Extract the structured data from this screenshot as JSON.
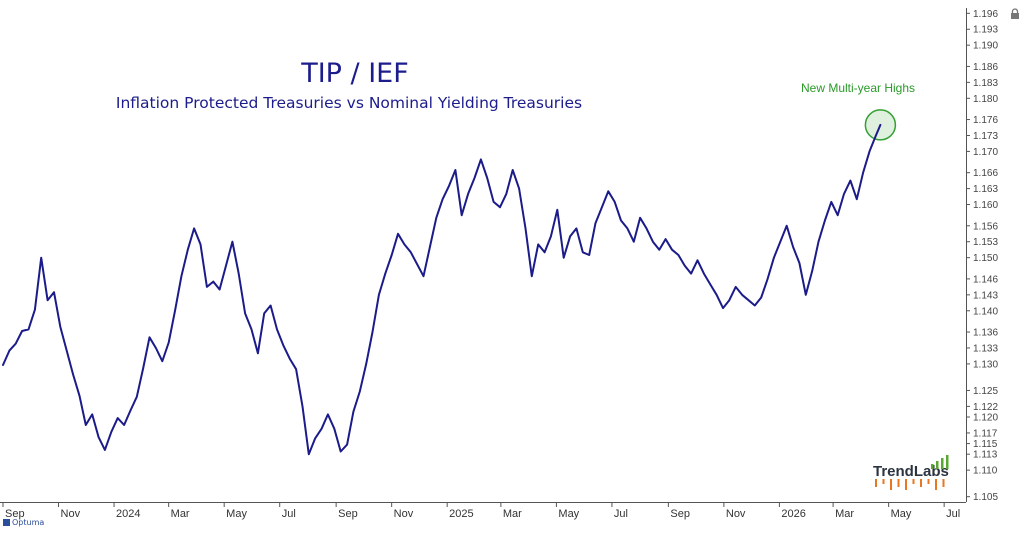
{
  "brand": "Optuma",
  "logo_text": "TrendLabs",
  "colors": {
    "line": "#1b1b8a",
    "title": "#1c1c8c",
    "annotation": "#2a9a2a",
    "highlight_fill": "#d7ecd6",
    "highlight_stroke": "#33a033",
    "axis": "#555555",
    "logo_dots": "#e87722",
    "logo_bars": "#5aa832"
  },
  "chart_data": {
    "type": "line",
    "title": "TIP / IEF",
    "subtitle": "Inflation Protected Treasuries vs Nominal Yielding Treasuries",
    "annotation": "New Multi-year Highs",
    "xlabel": "",
    "ylabel": "",
    "ylim": [
      1.104,
      1.197
    ],
    "grid": false,
    "y_ticks": [
      "1.196",
      "1.193",
      "1.190",
      "1.186",
      "1.183",
      "1.180",
      "1.176",
      "1.173",
      "1.170",
      "1.166",
      "1.163",
      "1.160",
      "1.156",
      "1.153",
      "1.150",
      "1.146",
      "1.143",
      "1.140",
      "1.136",
      "1.133",
      "1.130",
      "1.125",
      "1.122",
      "1.120",
      "1.117",
      "1.115",
      "1.113",
      "1.110",
      "1.105"
    ],
    "x_ticks": [
      "Sep",
      "Nov",
      "2024",
      "Mar",
      "May",
      "Jul",
      "Sep",
      "Nov",
      "2025",
      "Mar",
      "May",
      "Jul",
      "Sep",
      "Nov",
      "2026",
      "Mar",
      "May",
      "Jul"
    ],
    "x_tick_dates": [
      "2023-09-01",
      "2023-11-01",
      "2024-01-01",
      "2024-03-01",
      "2024-05-01",
      "2024-07-01",
      "2024-09-01",
      "2024-11-01",
      "2025-01-01",
      "2025-03-01",
      "2025-05-01",
      "2025-07-01",
      "2025-09-01",
      "2025-11-01",
      "2026-01-01",
      "2026-03-01",
      "2026-05-01",
      "2026-07-01"
    ],
    "xlim": [
      "2023-09-01",
      "2026-07-25"
    ],
    "series": [
      {
        "values": [
          [
            "2023-09-01",
            1.1298
          ],
          [
            "2023-09-08",
            1.1325
          ],
          [
            "2023-09-15",
            1.1338
          ],
          [
            "2023-09-22",
            1.1362
          ],
          [
            "2023-09-29",
            1.1365
          ],
          [
            "2023-10-06",
            1.1402
          ],
          [
            "2023-10-13",
            1.15
          ],
          [
            "2023-10-20",
            1.142
          ],
          [
            "2023-10-27",
            1.1435
          ],
          [
            "2023-11-03",
            1.137
          ],
          [
            "2023-11-10",
            1.1325
          ],
          [
            "2023-11-17",
            1.128
          ],
          [
            "2023-11-24",
            1.124
          ],
          [
            "2023-12-01",
            1.1185
          ],
          [
            "2023-12-08",
            1.1205
          ],
          [
            "2023-12-15",
            1.1162
          ],
          [
            "2023-12-22",
            1.1138
          ],
          [
            "2023-12-29",
            1.1172
          ],
          [
            "2024-01-05",
            1.1198
          ],
          [
            "2024-01-12",
            1.1185
          ],
          [
            "2024-01-19",
            1.1212
          ],
          [
            "2024-01-26",
            1.1238
          ],
          [
            "2024-02-02",
            1.1292
          ],
          [
            "2024-02-09",
            1.135
          ],
          [
            "2024-02-16",
            1.133
          ],
          [
            "2024-02-23",
            1.1305
          ],
          [
            "2024-03-01",
            1.134
          ],
          [
            "2024-03-08",
            1.14
          ],
          [
            "2024-03-15",
            1.1465
          ],
          [
            "2024-03-22",
            1.1515
          ],
          [
            "2024-03-29",
            1.1555
          ],
          [
            "2024-04-05",
            1.1525
          ],
          [
            "2024-04-12",
            1.1445
          ],
          [
            "2024-04-19",
            1.1455
          ],
          [
            "2024-04-26",
            1.144
          ],
          [
            "2024-05-03",
            1.1485
          ],
          [
            "2024-05-10",
            1.153
          ],
          [
            "2024-05-17",
            1.147
          ],
          [
            "2024-05-24",
            1.1395
          ],
          [
            "2024-05-31",
            1.1365
          ],
          [
            "2024-06-07",
            1.132
          ],
          [
            "2024-06-14",
            1.1395
          ],
          [
            "2024-06-21",
            1.141
          ],
          [
            "2024-06-28",
            1.1365
          ],
          [
            "2024-07-05",
            1.1335
          ],
          [
            "2024-07-12",
            1.131
          ],
          [
            "2024-07-19",
            1.129
          ],
          [
            "2024-07-26",
            1.122
          ],
          [
            "2024-08-02",
            1.113
          ],
          [
            "2024-08-09",
            1.116
          ],
          [
            "2024-08-16",
            1.1178
          ],
          [
            "2024-08-23",
            1.1205
          ],
          [
            "2024-08-30",
            1.1178
          ],
          [
            "2024-09-06",
            1.1135
          ],
          [
            "2024-09-13",
            1.1148
          ],
          [
            "2024-09-20",
            1.121
          ],
          [
            "2024-09-27",
            1.1248
          ],
          [
            "2024-10-04",
            1.13
          ],
          [
            "2024-10-11",
            1.136
          ],
          [
            "2024-10-18",
            1.143
          ],
          [
            "2024-10-25",
            1.147
          ],
          [
            "2024-11-01",
            1.1505
          ],
          [
            "2024-11-08",
            1.1545
          ],
          [
            "2024-11-15",
            1.1525
          ],
          [
            "2024-11-22",
            1.151
          ],
          [
            "2024-12-06",
            1.1465
          ],
          [
            "2024-12-13",
            1.152
          ],
          [
            "2024-12-20",
            1.1575
          ],
          [
            "2024-12-27",
            1.161
          ],
          [
            "2025-01-03",
            1.1635
          ],
          [
            "2025-01-10",
            1.1665
          ],
          [
            "2025-01-17",
            1.158
          ],
          [
            "2025-01-24",
            1.162
          ],
          [
            "2025-01-31",
            1.165
          ],
          [
            "2025-02-07",
            1.1685
          ],
          [
            "2025-02-14",
            1.165
          ],
          [
            "2025-02-21",
            1.1605
          ],
          [
            "2025-02-28",
            1.1595
          ],
          [
            "2025-03-07",
            1.162
          ],
          [
            "2025-03-14",
            1.1665
          ],
          [
            "2025-03-21",
            1.163
          ],
          [
            "2025-03-28",
            1.1555
          ],
          [
            "2025-04-04",
            1.1465
          ],
          [
            "2025-04-11",
            1.1525
          ],
          [
            "2025-04-18",
            1.151
          ],
          [
            "2025-04-25",
            1.154
          ],
          [
            "2025-05-02",
            1.159
          ],
          [
            "2025-05-09",
            1.15
          ],
          [
            "2025-05-16",
            1.154
          ],
          [
            "2025-05-23",
            1.1555
          ],
          [
            "2025-05-30",
            1.151
          ],
          [
            "2025-06-06",
            1.1505
          ],
          [
            "2025-06-13",
            1.1565
          ],
          [
            "2025-06-20",
            1.1595
          ],
          [
            "2025-06-27",
            1.1625
          ],
          [
            "2025-07-04",
            1.1605
          ],
          [
            "2025-07-11",
            1.157
          ],
          [
            "2025-07-18",
            1.1555
          ],
          [
            "2025-07-25",
            1.153
          ],
          [
            "2025-08-01",
            1.1575
          ],
          [
            "2025-08-08",
            1.1555
          ],
          [
            "2025-08-15",
            1.153
          ],
          [
            "2025-08-22",
            1.1515
          ],
          [
            "2025-08-29",
            1.1535
          ],
          [
            "2025-09-05",
            1.1515
          ],
          [
            "2025-09-12",
            1.1505
          ],
          [
            "2025-09-19",
            1.1485
          ],
          [
            "2025-09-26",
            1.147
          ],
          [
            "2025-10-03",
            1.1495
          ],
          [
            "2025-10-10",
            1.147
          ],
          [
            "2025-10-17",
            1.145
          ],
          [
            "2025-10-24",
            1.143
          ],
          [
            "2025-10-31",
            1.1405
          ],
          [
            "2025-11-07",
            1.142
          ],
          [
            "2025-11-14",
            1.1445
          ],
          [
            "2025-11-21",
            1.143
          ],
          [
            "2025-11-28",
            1.142
          ],
          [
            "2025-12-05",
            1.141
          ],
          [
            "2025-12-12",
            1.1425
          ],
          [
            "2025-12-19",
            1.146
          ],
          [
            "2025-12-26",
            1.15
          ],
          [
            "2026-01-02",
            1.153
          ],
          [
            "2026-01-09",
            1.156
          ],
          [
            "2026-01-16",
            1.152
          ],
          [
            "2026-01-23",
            1.149
          ],
          [
            "2026-01-30",
            1.143
          ],
          [
            "2026-02-06",
            1.1475
          ],
          [
            "2026-02-13",
            1.153
          ],
          [
            "2026-02-20",
            1.157
          ],
          [
            "2026-02-27",
            1.1605
          ],
          [
            "2026-03-06",
            1.158
          ],
          [
            "2026-03-13",
            1.162
          ],
          [
            "2026-03-20",
            1.1645
          ],
          [
            "2026-03-27",
            1.161
          ],
          [
            "2026-04-03",
            1.166
          ],
          [
            "2026-04-10",
            1.17
          ],
          [
            "2026-04-17",
            1.173
          ],
          [
            "2026-04-22",
            1.175
          ]
        ]
      }
    ]
  }
}
